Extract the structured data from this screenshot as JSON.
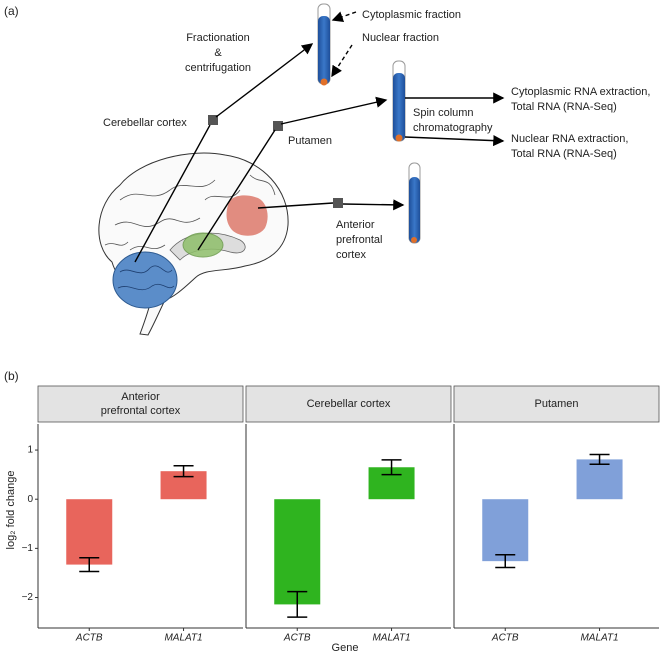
{
  "panel_labels": [
    "(a)",
    "(b)"
  ],
  "diagram": {
    "step_fractionation": [
      "Fractionation",
      "&",
      "centrifugation"
    ],
    "cytoplasmic_fraction": "Cytoplasmic fraction",
    "nuclear_fraction": "Nuclear fraction",
    "region_cerebellar": "Cerebellar cortex",
    "region_putamen": "Putamen",
    "region_prefrontal": [
      "Anterior",
      "prefrontal",
      "cortex"
    ],
    "step_spin_column": [
      "Spin column",
      "chromatography"
    ],
    "output_cytoplasmic": [
      "Cytoplasmic RNA extraction,",
      "Total RNA (RNA-Seq)"
    ],
    "output_nuclear": [
      "Nuclear RNA extraction,",
      "Total RNA (RNA-Seq)"
    ]
  },
  "panel_b": {
    "x_label": "Gene",
    "y_label": "log₂ fold change"
  },
  "chart_data": [
    {
      "type": "bar",
      "title": [
        "Anterior",
        "prefrontal cortex"
      ],
      "categories": [
        "ACTB",
        "MALAT1"
      ],
      "values": [
        -1.33,
        0.57
      ],
      "errors": [
        0.14,
        0.11
      ],
      "color": "#e8655c",
      "ylim": [
        -2.62,
        1.53
      ],
      "yticks": [
        {
          "value": -2,
          "label": "−2"
        },
        {
          "value": -1,
          "label": "−1"
        },
        0,
        1
      ]
    },
    {
      "type": "bar",
      "title": [
        "Cerebellar cortex"
      ],
      "categories": [
        "ACTB",
        "MALAT1"
      ],
      "values": [
        -2.14,
        0.65
      ],
      "errors": [
        0.26,
        0.15
      ],
      "color": "#2fb41f",
      "ylim": [
        -2.62,
        1.53
      ]
    },
    {
      "type": "bar",
      "title": [
        "Putamen"
      ],
      "categories": [
        "ACTB",
        "MALAT1"
      ],
      "values": [
        -1.26,
        0.81
      ],
      "errors": [
        0.13,
        0.1
      ],
      "color": "#80a0d9",
      "ylim": [
        -2.62,
        1.53
      ]
    }
  ]
}
